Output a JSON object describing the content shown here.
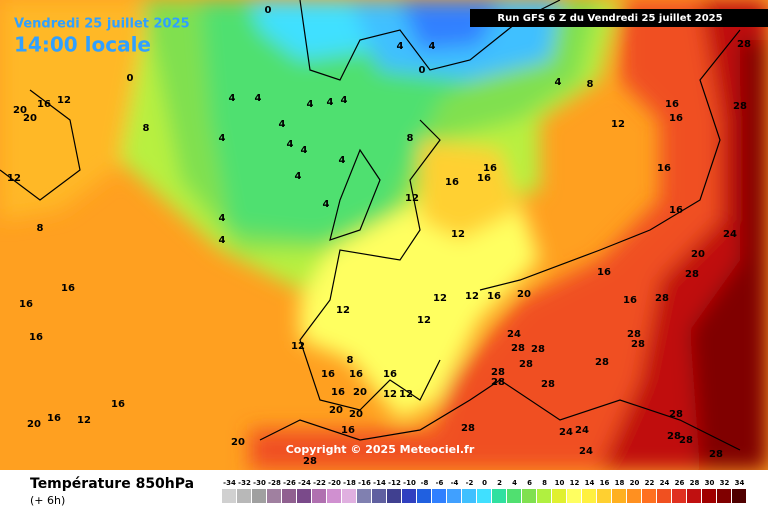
{
  "header": {
    "date": "Vendredi 25 juillet 2025",
    "time": "14:00 locale",
    "run": "Run GFS 6 Z du Vendredi 25 juillet 2025"
  },
  "copyright": "Copyright © 2025 Meteociel.fr",
  "footer": {
    "title": "Température 850hPa",
    "lead": "(+ 6h)"
  },
  "legend": {
    "values": [
      -34,
      -32,
      -30,
      -28,
      -26,
      -24,
      -22,
      -20,
      -18,
      -16,
      -14,
      -12,
      -10,
      -8,
      -6,
      -4,
      -2,
      0,
      2,
      4,
      6,
      8,
      10,
      12,
      14,
      16,
      18,
      20,
      22,
      24,
      26,
      28,
      30,
      32,
      34
    ],
    "colors": [
      "#d0d0d0",
      "#b8b8b8",
      "#a0a0a0",
      "#a080a0",
      "#906090",
      "#7a4a8a",
      "#b070b0",
      "#d090d0",
      "#e0b0e0",
      "#8080b0",
      "#6060a0",
      "#404090",
      "#3040c0",
      "#2060e0",
      "#3080ff",
      "#40a0ff",
      "#40c0ff",
      "#40e0ff",
      "#30e0a0",
      "#50e070",
      "#80e050",
      "#b0f040",
      "#e0f030",
      "#ffff60",
      "#fff040",
      "#ffd030",
      "#ffb020",
      "#ff9020",
      "#ff7020",
      "#f05020",
      "#e03020",
      "#c01010",
      "#a00000",
      "#800000",
      "#500000"
    ]
  },
  "map_labels": [
    0,
    0,
    4,
    4,
    0,
    4,
    8,
    4,
    4,
    4,
    4,
    4,
    4,
    4,
    4,
    4,
    4,
    4,
    4,
    4,
    4,
    8,
    8,
    20,
    16,
    12,
    20,
    12,
    8,
    16,
    16,
    16,
    12,
    12,
    12,
    16,
    16,
    28,
    28,
    16,
    16,
    24,
    20,
    28,
    16,
    16,
    28,
    20,
    16,
    12,
    12,
    12,
    12,
    12,
    16,
    16,
    16,
    24,
    28,
    28,
    28,
    28,
    28,
    28,
    28,
    28,
    28,
    8,
    16,
    16,
    20,
    16,
    16,
    12,
    12,
    20,
    20,
    16,
    16,
    12,
    20,
    16,
    28,
    24,
    24,
    28,
    28,
    28,
    20,
    28,
    24,
    28
  ]
}
